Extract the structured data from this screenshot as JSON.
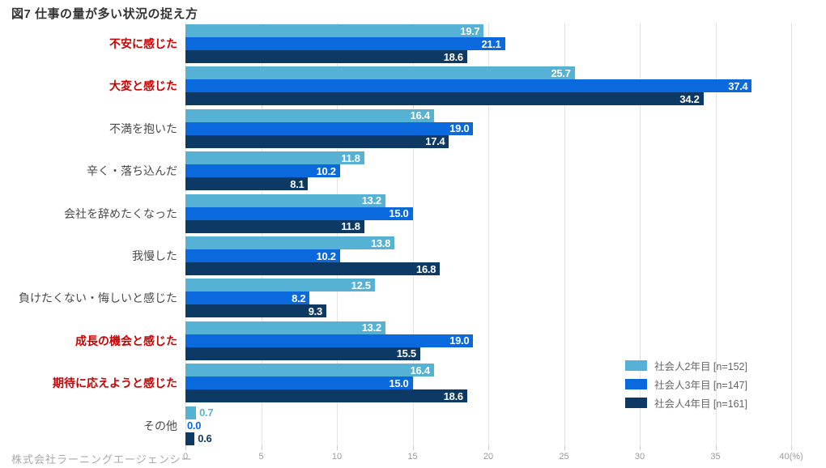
{
  "title": "図7 仕事の量が多い状況の捉え方",
  "footer": "株式会社ラーニングエージェンシー",
  "chart_data": {
    "type": "bar",
    "orientation": "horizontal",
    "title": "図7 仕事の量が多い状況の捉え方",
    "xlabel": "",
    "ylabel": "",
    "xlim": [
      0,
      40
    ],
    "xticks": [
      0,
      5,
      10,
      15,
      20,
      25,
      30,
      35,
      40
    ],
    "unit_suffix": "(%)",
    "grid": true,
    "legend_position": "right-inside",
    "value_label_decimals": 1,
    "highlight_color": "#cc0000",
    "categories": [
      {
        "label": "不安に感じた",
        "highlight": true
      },
      {
        "label": "大変と感じた",
        "highlight": true
      },
      {
        "label": "不満を抱いた",
        "highlight": false
      },
      {
        "label": "辛く・落ち込んだ",
        "highlight": false
      },
      {
        "label": "会社を辞めたくなった",
        "highlight": false
      },
      {
        "label": "我慢した",
        "highlight": false
      },
      {
        "label": "負けたくない・悔しいと感じた",
        "highlight": false
      },
      {
        "label": "成長の機会と感じた",
        "highlight": true
      },
      {
        "label": "期待に応えようと感じた",
        "highlight": true
      },
      {
        "label": "その他",
        "highlight": false
      }
    ],
    "series": [
      {
        "name": "社会人2年目 [n=152]",
        "color": "#55b2d4",
        "values": [
          19.7,
          25.7,
          16.4,
          11.8,
          13.2,
          13.8,
          12.5,
          13.2,
          16.4,
          0.7
        ]
      },
      {
        "name": "社会人3年目 [n=147]",
        "color": "#0a69dd",
        "values": [
          21.1,
          37.4,
          19.0,
          10.2,
          15.0,
          10.2,
          8.2,
          19.0,
          15.0,
          0.0
        ]
      },
      {
        "name": "社会人4年目 [n=161]",
        "color": "#0c3a64",
        "values": [
          18.6,
          34.2,
          17.4,
          8.1,
          11.8,
          16.8,
          9.3,
          15.5,
          18.6,
          0.6
        ]
      }
    ]
  }
}
